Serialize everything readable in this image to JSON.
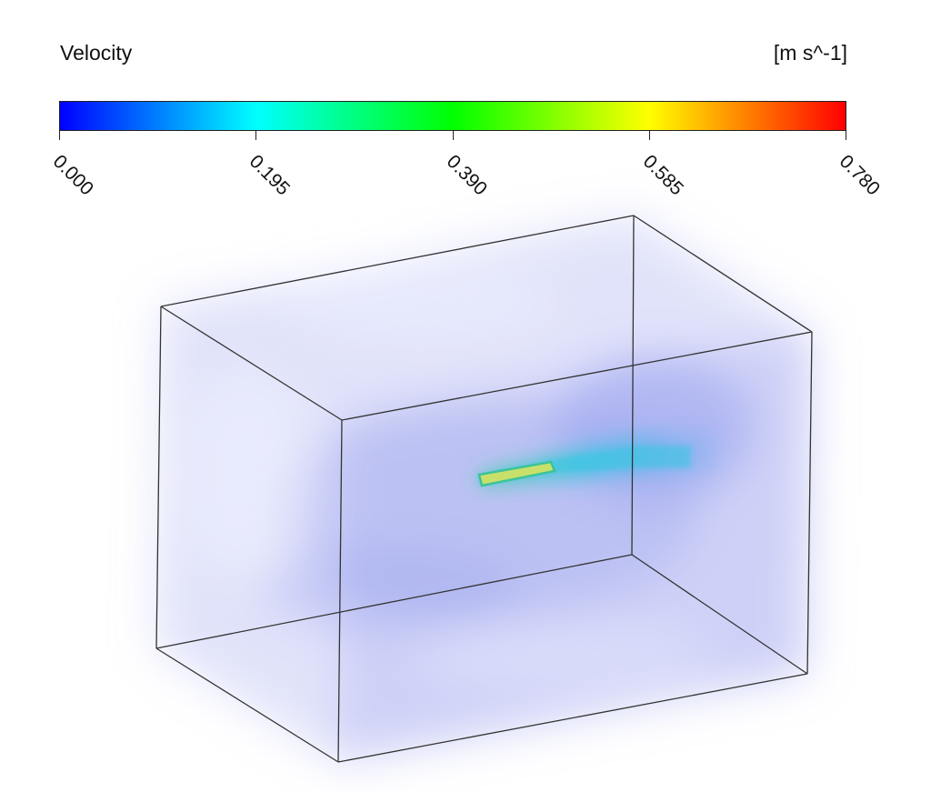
{
  "legend": {
    "title": "Velocity",
    "units": "[m s^-1]",
    "min": 0.0,
    "max": 0.78,
    "ticks": [
      "0.000",
      "0.195",
      "0.390",
      "0.585",
      "0.780"
    ],
    "colormap": [
      "#0000ff",
      "#00ffff",
      "#00ff00",
      "#ffff00",
      "#ff0000"
    ]
  },
  "colors": {
    "box_edge": "#333333",
    "fluid_tint": "#b8bdf2",
    "jet_core": "#c8e06a",
    "jet_plume": "#3ac8e6"
  }
}
